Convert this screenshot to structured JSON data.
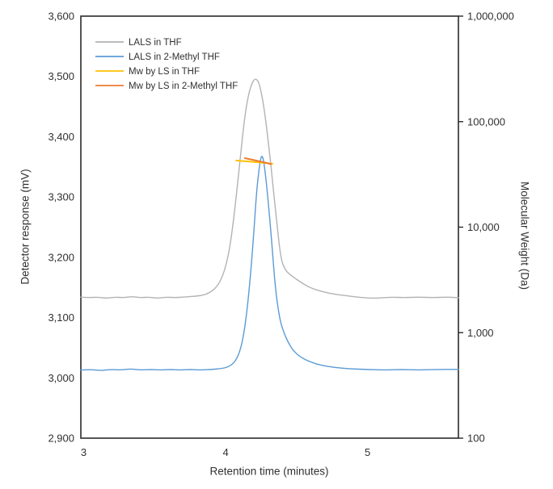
{
  "chart_data": {
    "type": "line",
    "title": "",
    "background_color": "#ffffff",
    "axis_color": "#2b2b2b",
    "text_color": "#303030",
    "grid": "off",
    "x_axis": {
      "label": "Retention time (minutes)",
      "min": 2.98,
      "max": 5.64,
      "ticks": [
        3,
        4,
        5
      ],
      "tick_labels": [
        "3",
        "4",
        "5"
      ]
    },
    "y_left_axis": {
      "label": "Detector response (mV)",
      "min": 2900,
      "max": 3600,
      "ticks": [
        3600,
        3500,
        3400,
        3300,
        3200,
        3100,
        3000,
        2900
      ],
      "tick_labels": [
        "3,600",
        "3,500",
        "3,400",
        "3,300",
        "3,200",
        "3,100",
        "3,000",
        "2,900"
      ]
    },
    "y_right_axis": {
      "label": "Molecular Weight (Da)",
      "scale": "log",
      "min": 100,
      "max": 1000000,
      "ticks": [
        1000000,
        100000,
        10000,
        1000,
        100
      ],
      "tick_labels": [
        "1,000,000",
        "100,000",
        "10,000",
        "1,000",
        "100"
      ]
    },
    "legend": {
      "position": "inside-top-left",
      "items": [
        "LALS in THF",
        "LALS in 2-Methyl THF",
        "Mw by LS in THF",
        "Mw by LS in 2-Methyl THF"
      ]
    },
    "series": [
      {
        "name": "LALS in THF",
        "color": "#b3b3b3",
        "axis": "left",
        "line_width": 1.4,
        "points": [
          [
            2.98,
            3134
          ],
          [
            3.04,
            3133
          ],
          [
            3.1,
            3134
          ],
          [
            3.16,
            3132
          ],
          [
            3.22,
            3134
          ],
          [
            3.28,
            3133
          ],
          [
            3.34,
            3135
          ],
          [
            3.4,
            3133
          ],
          [
            3.46,
            3134
          ],
          [
            3.52,
            3132
          ],
          [
            3.58,
            3134
          ],
          [
            3.64,
            3133
          ],
          [
            3.7,
            3134
          ],
          [
            3.76,
            3135
          ],
          [
            3.82,
            3136
          ],
          [
            3.88,
            3140
          ],
          [
            3.93,
            3149
          ],
          [
            3.97,
            3163
          ],
          [
            4.01,
            3192
          ],
          [
            4.04,
            3232
          ],
          [
            4.07,
            3290
          ],
          [
            4.1,
            3358
          ],
          [
            4.13,
            3425
          ],
          [
            4.16,
            3470
          ],
          [
            4.19,
            3492
          ],
          [
            4.215,
            3497
          ],
          [
            4.24,
            3487
          ],
          [
            4.27,
            3450
          ],
          [
            4.3,
            3394
          ],
          [
            4.33,
            3328
          ],
          [
            4.36,
            3258
          ],
          [
            4.39,
            3196
          ],
          [
            4.42,
            3179
          ],
          [
            4.45,
            3172
          ],
          [
            4.49,
            3165
          ],
          [
            4.54,
            3157
          ],
          [
            4.6,
            3149
          ],
          [
            4.68,
            3143
          ],
          [
            4.76,
            3139
          ],
          [
            4.86,
            3136
          ],
          [
            4.96,
            3133
          ],
          [
            5.06,
            3132
          ],
          [
            5.16,
            3134
          ],
          [
            5.26,
            3133
          ],
          [
            5.36,
            3134
          ],
          [
            5.46,
            3133
          ],
          [
            5.56,
            3134
          ],
          [
            5.64,
            3133
          ]
        ]
      },
      {
        "name": "LALS in 2-Methyl THF",
        "color": "#5b9bd5",
        "axis": "left",
        "line_width": 1.4,
        "points": [
          [
            2.98,
            3013
          ],
          [
            3.05,
            3014
          ],
          [
            3.12,
            3012
          ],
          [
            3.19,
            3014
          ],
          [
            3.26,
            3013
          ],
          [
            3.33,
            3015
          ],
          [
            3.4,
            3013
          ],
          [
            3.47,
            3014
          ],
          [
            3.54,
            3013
          ],
          [
            3.61,
            3014
          ],
          [
            3.68,
            3013
          ],
          [
            3.75,
            3014
          ],
          [
            3.82,
            3013
          ],
          [
            3.89,
            3014
          ],
          [
            3.96,
            3015
          ],
          [
            4.02,
            3018
          ],
          [
            4.07,
            3027
          ],
          [
            4.11,
            3050
          ],
          [
            4.14,
            3090
          ],
          [
            4.17,
            3155
          ],
          [
            4.2,
            3245
          ],
          [
            4.22,
            3315
          ],
          [
            4.24,
            3355
          ],
          [
            4.255,
            3371
          ],
          [
            4.27,
            3358
          ],
          [
            4.29,
            3318
          ],
          [
            4.32,
            3240
          ],
          [
            4.35,
            3148
          ],
          [
            4.38,
            3098
          ],
          [
            4.41,
            3075
          ],
          [
            4.44,
            3059
          ],
          [
            4.48,
            3044
          ],
          [
            4.53,
            3034
          ],
          [
            4.59,
            3027
          ],
          [
            4.67,
            3021
          ],
          [
            4.77,
            3017
          ],
          [
            4.88,
            3015
          ],
          [
            5.0,
            3014
          ],
          [
            5.12,
            3013
          ],
          [
            5.24,
            3014
          ],
          [
            5.36,
            3013
          ],
          [
            5.48,
            3014
          ],
          [
            5.64,
            3014
          ]
        ]
      },
      {
        "name": "Mw by LS in THF",
        "color": "#ffc000",
        "axis": "right",
        "line_width": 2,
        "points": [
          [
            4.075,
            42800
          ],
          [
            4.2,
            41500
          ],
          [
            4.33,
            39900
          ]
        ]
      },
      {
        "name": "Mw by LS in 2-Methyl THF",
        "color": "#ed7d31",
        "axis": "right",
        "line_width": 2,
        "points": [
          [
            4.135,
            45100
          ],
          [
            4.23,
            42400
          ],
          [
            4.32,
            39600
          ]
        ]
      }
    ]
  }
}
